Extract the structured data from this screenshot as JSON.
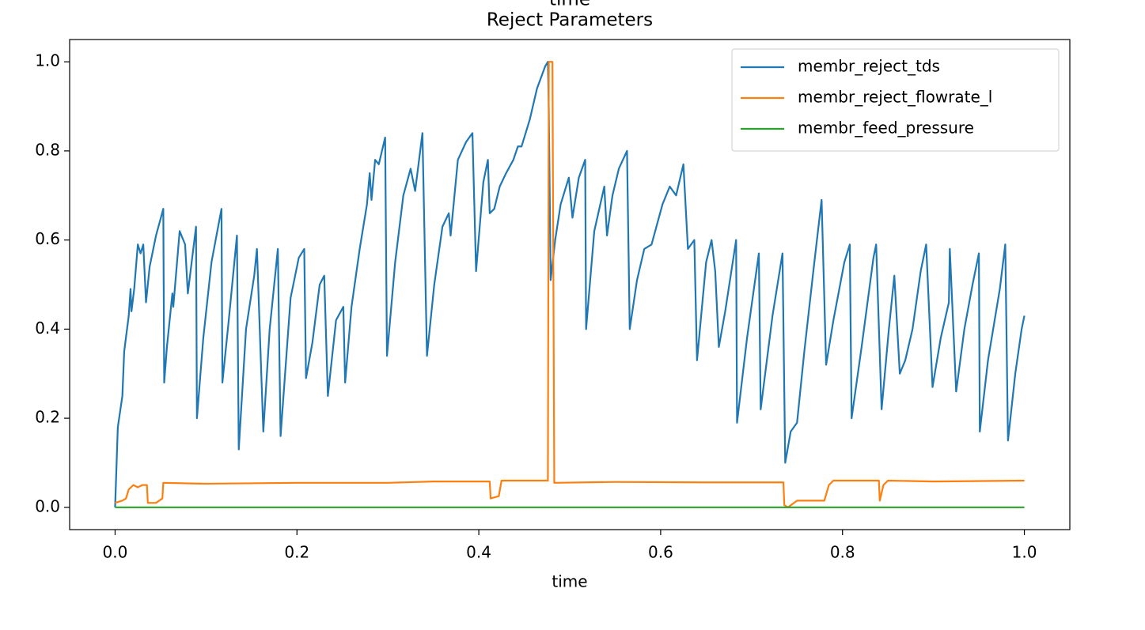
{
  "chart_data": {
    "type": "line",
    "suptitle": "time",
    "title": "Reject Parameters",
    "xlabel": "time",
    "xlim": [
      -0.05,
      1.05
    ],
    "ylim": [
      -0.05,
      1.05
    ],
    "xticks": [
      {
        "value": 0,
        "label": "0.0"
      },
      {
        "value": 0.2,
        "label": "0.2"
      },
      {
        "value": 0.4,
        "label": "0.4"
      },
      {
        "value": 0.6,
        "label": "0.6"
      },
      {
        "value": 0.8,
        "label": "0.8"
      },
      {
        "value": 1,
        "label": "1.0"
      }
    ],
    "yticks": [
      {
        "value": 0,
        "label": "0.0"
      },
      {
        "value": 0.2,
        "label": "0.2"
      },
      {
        "value": 0.4,
        "label": "0.4"
      },
      {
        "value": 0.6,
        "label": "0.6"
      },
      {
        "value": 0.8,
        "label": "0.8"
      },
      {
        "value": 1,
        "label": "1.0"
      }
    ],
    "grid": false,
    "legend": "upper right",
    "series": [
      {
        "name": "membr_reject_tds",
        "color": "#1f77b4",
        "x": [
          0,
          0.003,
          0.008,
          0.01,
          0.015,
          0.017,
          0.018,
          0.021,
          0.025,
          0.028,
          0.031,
          0.034,
          0.038,
          0.045,
          0.053,
          0.054,
          0.057,
          0.063,
          0.064,
          0.071,
          0.077,
          0.08,
          0.083,
          0.089,
          0.09,
          0.097,
          0.106,
          0.117,
          0.118,
          0.125,
          0.134,
          0.136,
          0.144,
          0.153,
          0.156,
          0.163,
          0.17,
          0.179,
          0.182,
          0.193,
          0.202,
          0.208,
          0.21,
          0.217,
          0.225,
          0.23,
          0.234,
          0.243,
          0.251,
          0.253,
          0.26,
          0.269,
          0.277,
          0.28,
          0.282,
          0.286,
          0.29,
          0.297,
          0.299,
          0.308,
          0.317,
          0.325,
          0.33,
          0.338,
          0.343,
          0.351,
          0.36,
          0.367,
          0.369,
          0.377,
          0.386,
          0.393,
          0.397,
          0.405,
          0.41,
          0.412,
          0.417,
          0.423,
          0.43,
          0.438,
          0.443,
          0.447,
          0.456,
          0.464,
          0.473,
          0.476,
          0.477,
          0.479,
          0.484,
          0.49,
          0.499,
          0.503,
          0.51,
          0.517,
          0.518,
          0.527,
          0.538,
          0.541,
          0.547,
          0.554,
          0.563,
          0.566,
          0.574,
          0.582,
          0.59,
          0.602,
          0.61,
          0.617,
          0.625,
          0.63,
          0.637,
          0.64,
          0.65,
          0.656,
          0.66,
          0.664,
          0.671,
          0.683,
          0.684,
          0.695,
          0.708,
          0.71,
          0.723,
          0.734,
          0.737,
          0.743,
          0.75,
          0.758,
          0.769,
          0.777,
          0.782,
          0.79,
          0.802,
          0.808,
          0.81,
          0.821,
          0.834,
          0.837,
          0.843,
          0.851,
          0.857,
          0.863,
          0.869,
          0.877,
          0.886,
          0.892,
          0.899,
          0.908,
          0.917,
          0.918,
          0.925,
          0.934,
          0.943,
          0.95,
          0.951,
          0.96,
          0.973,
          0.979,
          0.982,
          0.99,
          0.997,
          1.0
        ],
        "values": [
          0,
          0.18,
          0.25,
          0.35,
          0.43,
          0.49,
          0.44,
          0.49,
          0.59,
          0.57,
          0.59,
          0.46,
          0.54,
          0.61,
          0.67,
          0.28,
          0.36,
          0.48,
          0.45,
          0.62,
          0.59,
          0.48,
          0.53,
          0.63,
          0.2,
          0.38,
          0.55,
          0.67,
          0.28,
          0.42,
          0.61,
          0.13,
          0.4,
          0.52,
          0.58,
          0.17,
          0.4,
          0.58,
          0.16,
          0.47,
          0.56,
          0.58,
          0.29,
          0.37,
          0.5,
          0.52,
          0.25,
          0.42,
          0.45,
          0.28,
          0.45,
          0.58,
          0.68,
          0.75,
          0.69,
          0.78,
          0.77,
          0.83,
          0.34,
          0.55,
          0.7,
          0.76,
          0.71,
          0.84,
          0.34,
          0.5,
          0.63,
          0.66,
          0.61,
          0.78,
          0.82,
          0.84,
          0.53,
          0.73,
          0.78,
          0.66,
          0.67,
          0.72,
          0.75,
          0.78,
          0.81,
          0.81,
          0.87,
          0.94,
          0.99,
          1.0,
          0.89,
          0.51,
          0.6,
          0.68,
          0.74,
          0.65,
          0.74,
          0.78,
          0.4,
          0.62,
          0.72,
          0.61,
          0.7,
          0.76,
          0.8,
          0.4,
          0.51,
          0.58,
          0.59,
          0.68,
          0.72,
          0.7,
          0.77,
          0.58,
          0.6,
          0.33,
          0.55,
          0.6,
          0.53,
          0.36,
          0.44,
          0.6,
          0.19,
          0.38,
          0.57,
          0.22,
          0.43,
          0.57,
          0.1,
          0.17,
          0.19,
          0.35,
          0.55,
          0.69,
          0.32,
          0.42,
          0.55,
          0.59,
          0.2,
          0.36,
          0.56,
          0.59,
          0.22,
          0.4,
          0.52,
          0.3,
          0.33,
          0.4,
          0.53,
          0.59,
          0.27,
          0.38,
          0.46,
          0.58,
          0.26,
          0.4,
          0.5,
          0.57,
          0.17,
          0.33,
          0.49,
          0.59,
          0.15,
          0.3,
          0.4,
          0.43
        ]
      },
      {
        "name": "membr_reject_flowrate_l",
        "color": "#ff7f0e",
        "x": [
          0,
          0.008,
          0.012,
          0.015,
          0.02,
          0.025,
          0.03,
          0.035,
          0.036,
          0.045,
          0.052,
          0.053,
          0.1,
          0.2,
          0.3,
          0.35,
          0.4,
          0.412,
          0.413,
          0.422,
          0.425,
          0.47,
          0.476,
          0.477,
          0.481,
          0.483,
          0.55,
          0.65,
          0.735,
          0.736,
          0.74,
          0.75,
          0.78,
          0.785,
          0.79,
          0.84,
          0.841,
          0.845,
          0.85,
          0.9,
          1.0
        ],
        "values": [
          0.01,
          0.015,
          0.02,
          0.04,
          0.05,
          0.045,
          0.05,
          0.05,
          0.01,
          0.01,
          0.02,
          0.055,
          0.053,
          0.055,
          0.055,
          0.058,
          0.058,
          0.058,
          0.02,
          0.025,
          0.06,
          0.06,
          0.06,
          1.0,
          1.0,
          0.055,
          0.057,
          0.056,
          0.056,
          0.005,
          0,
          0.015,
          0.015,
          0.05,
          0.06,
          0.06,
          0.015,
          0.05,
          0.06,
          0.058,
          0.06
        ]
      },
      {
        "name": "membr_feed_pressure",
        "color": "#2ca02c",
        "x": [
          0,
          1
        ],
        "values": [
          0,
          0
        ]
      }
    ]
  }
}
